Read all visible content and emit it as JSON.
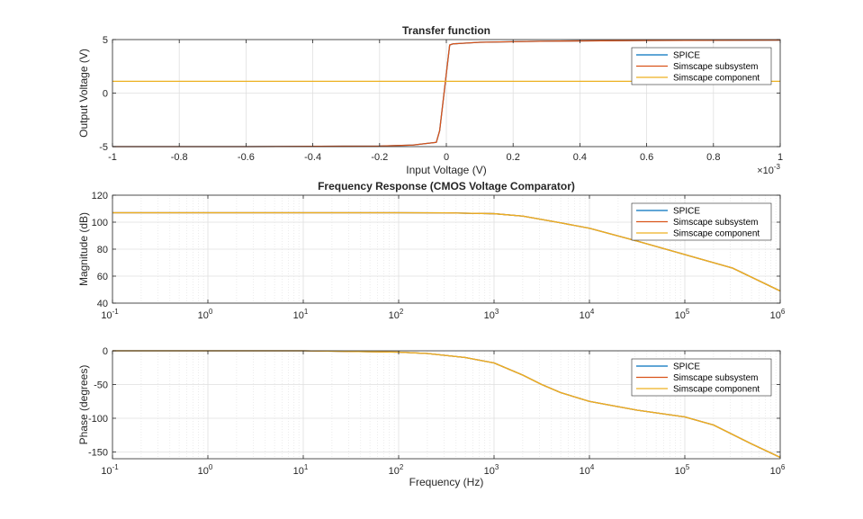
{
  "colors": {
    "spice": "#0072BD",
    "simscape_subsystem": "#D95319",
    "simscape_component": "#EDB120",
    "grid": "#dfdfdf",
    "axis": "#262626"
  },
  "chart_data": [
    {
      "type": "line",
      "title": "Transfer function",
      "xlabel": "Input Voltage (V)",
      "ylabel": "Output Voltage (V)",
      "x_exponent_label": "×10",
      "x_exponent": "-3",
      "xlim": [
        -1,
        1
      ],
      "ylim": [
        -5,
        5
      ],
      "xscale": "linear",
      "grid": true,
      "legend_position": "top-right",
      "x_ticks": [
        -1,
        -0.8,
        -0.6,
        -0.4,
        -0.2,
        0,
        0.2,
        0.4,
        0.6,
        0.8,
        1
      ],
      "x_tick_labels": [
        "-1",
        "-0.8",
        "-0.6",
        "-0.4",
        "-0.2",
        "0",
        "0.2",
        "0.4",
        "0.6",
        "0.8",
        "1"
      ],
      "y_ticks": [
        -5,
        0,
        5
      ],
      "y_tick_labels": [
        "-5",
        "0",
        "5"
      ],
      "series": [
        {
          "name": "SPICE",
          "color_key": "spice",
          "x": [
            -1,
            -0.6,
            -0.2,
            -0.1,
            -0.03,
            -0.02,
            0.01,
            0.02,
            0.1,
            0.3,
            0.6,
            1
          ],
          "y": [
            -5,
            -5,
            -4.95,
            -4.85,
            -4.6,
            -3.5,
            4.5,
            4.6,
            4.75,
            4.85,
            4.92,
            4.95
          ]
        },
        {
          "name": "Simscape subsystem",
          "color_key": "simscape_subsystem",
          "x": [
            -1,
            -0.6,
            -0.2,
            -0.1,
            -0.03,
            -0.02,
            0.01,
            0.02,
            0.1,
            0.3,
            0.6,
            1
          ],
          "y": [
            -5,
            -5,
            -4.95,
            -4.85,
            -4.6,
            -3.5,
            4.5,
            4.6,
            4.75,
            4.85,
            4.92,
            4.95
          ]
        },
        {
          "name": "Simscape component",
          "color_key": "simscape_component",
          "x": [
            -1,
            1
          ],
          "y": [
            1.1,
            1.1
          ]
        }
      ]
    },
    {
      "type": "line",
      "title": "Frequency Response (CMOS Voltage Comparator)",
      "xlabel": "",
      "ylabel": "Magnitude (dB)",
      "xscale": "log",
      "xlim": [
        0.1,
        1000000
      ],
      "ylim": [
        40,
        120
      ],
      "grid": true,
      "legend_position": "top-right",
      "x_ticks": [
        0.1,
        1,
        10,
        100,
        1000,
        10000,
        100000,
        1000000
      ],
      "x_tick_labels": [
        {
          "base": "10",
          "exp": "-1"
        },
        {
          "base": "10",
          "exp": "0"
        },
        {
          "base": "10",
          "exp": "1"
        },
        {
          "base": "10",
          "exp": "2"
        },
        {
          "base": "10",
          "exp": "3"
        },
        {
          "base": "10",
          "exp": "4"
        },
        {
          "base": "10",
          "exp": "5"
        },
        {
          "base": "10",
          "exp": "6"
        }
      ],
      "y_ticks": [
        40,
        60,
        80,
        100,
        120
      ],
      "y_tick_labels": [
        "40",
        "60",
        "80",
        "100",
        "120"
      ],
      "series": [
        {
          "name": "SPICE",
          "color_key": "spice",
          "x": [
            0.1,
            1,
            10,
            100,
            316,
            1000,
            2000,
            5000,
            10000,
            31600,
            100000,
            316000,
            1000000
          ],
          "y": [
            107,
            107,
            107,
            107,
            106.9,
            106.3,
            104.5,
            99.5,
            95.5,
            86,
            76,
            66,
            49
          ]
        },
        {
          "name": "Simscape subsystem",
          "color_key": "simscape_subsystem",
          "x": [
            0.1,
            1,
            10,
            100,
            316,
            1000,
            2000,
            5000,
            10000,
            31600,
            100000,
            316000,
            1000000
          ],
          "y": [
            107,
            107,
            107,
            107,
            106.9,
            106.3,
            104.5,
            99.5,
            95.5,
            86,
            76,
            66,
            49
          ]
        },
        {
          "name": "Simscape component",
          "color_key": "simscape_component",
          "x": [
            0.1,
            1,
            10,
            100,
            316,
            1000,
            2000,
            5000,
            10000,
            31600,
            100000,
            316000,
            1000000
          ],
          "y": [
            107,
            107,
            107,
            107,
            106.9,
            106.3,
            104.5,
            99.5,
            95.5,
            86,
            76,
            66,
            49
          ]
        }
      ]
    },
    {
      "type": "line",
      "title": "",
      "xlabel": "Frequency (Hz)",
      "ylabel": "Phase (degrees)",
      "xscale": "log",
      "xlim": [
        0.1,
        1000000
      ],
      "ylim": [
        -160,
        0
      ],
      "grid": true,
      "legend_position": "top-right",
      "x_ticks": [
        0.1,
        1,
        10,
        100,
        1000,
        10000,
        100000,
        1000000
      ],
      "x_tick_labels": [
        {
          "base": "10",
          "exp": "-1"
        },
        {
          "base": "10",
          "exp": "0"
        },
        {
          "base": "10",
          "exp": "1"
        },
        {
          "base": "10",
          "exp": "2"
        },
        {
          "base": "10",
          "exp": "3"
        },
        {
          "base": "10",
          "exp": "4"
        },
        {
          "base": "10",
          "exp": "5"
        },
        {
          "base": "10",
          "exp": "6"
        }
      ],
      "y_ticks": [
        -150,
        -100,
        -50,
        0
      ],
      "y_tick_labels": [
        "-150",
        "-100",
        "-50",
        "0"
      ],
      "series": [
        {
          "name": "SPICE",
          "color_key": "spice",
          "x": [
            0.1,
            1,
            10,
            100,
            200,
            500,
            1000,
            2000,
            3160,
            5000,
            10000,
            31600,
            100000,
            200000,
            500000,
            1000000
          ],
          "y": [
            0,
            0,
            0,
            -2,
            -4,
            -10,
            -18,
            -36,
            -50,
            -62,
            -75,
            -88,
            -98,
            -110,
            -138,
            -158
          ]
        },
        {
          "name": "Simscape subsystem",
          "color_key": "simscape_subsystem",
          "x": [
            0.1,
            1,
            10,
            100,
            200,
            500,
            1000,
            2000,
            3160,
            5000,
            10000,
            31600,
            100000,
            200000,
            500000,
            1000000
          ],
          "y": [
            0,
            0,
            0,
            -2,
            -4,
            -10,
            -18,
            -36,
            -50,
            -62,
            -75,
            -88,
            -98,
            -110,
            -138,
            -158
          ]
        },
        {
          "name": "Simscape component",
          "color_key": "simscape_component",
          "x": [
            0.1,
            1,
            10,
            100,
            200,
            500,
            1000,
            2000,
            3160,
            5000,
            10000,
            31600,
            100000,
            200000,
            500000,
            1000000
          ],
          "y": [
            0,
            0,
            0,
            -2,
            -4,
            -10,
            -18,
            -36,
            -50,
            -62,
            -75,
            -88,
            -98,
            -110,
            -138,
            -158
          ]
        }
      ]
    }
  ]
}
